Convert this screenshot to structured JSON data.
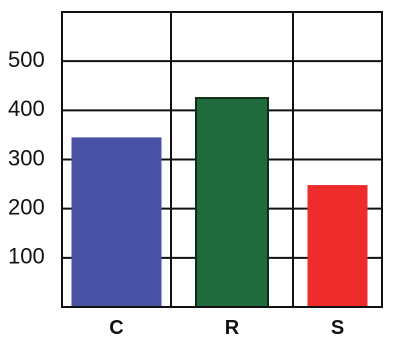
{
  "chart_data": {
    "type": "bar",
    "title": "",
    "xlabel": "",
    "ylabel": "",
    "categories": [
      "C",
      "R",
      "S"
    ],
    "values": [
      345,
      425,
      248
    ],
    "ylim": [
      0,
      600
    ],
    "yticks": [
      100,
      200,
      300,
      400,
      500
    ],
    "ytick_labels": [
      "100",
      "200",
      "300",
      "400",
      "500"
    ],
    "grid": true,
    "legend": "none",
    "colors": [
      "#4a52a6",
      "#1f6b3d",
      "#ee2c2c"
    ],
    "frame_color": "#111111",
    "grid_color": "#111111"
  }
}
